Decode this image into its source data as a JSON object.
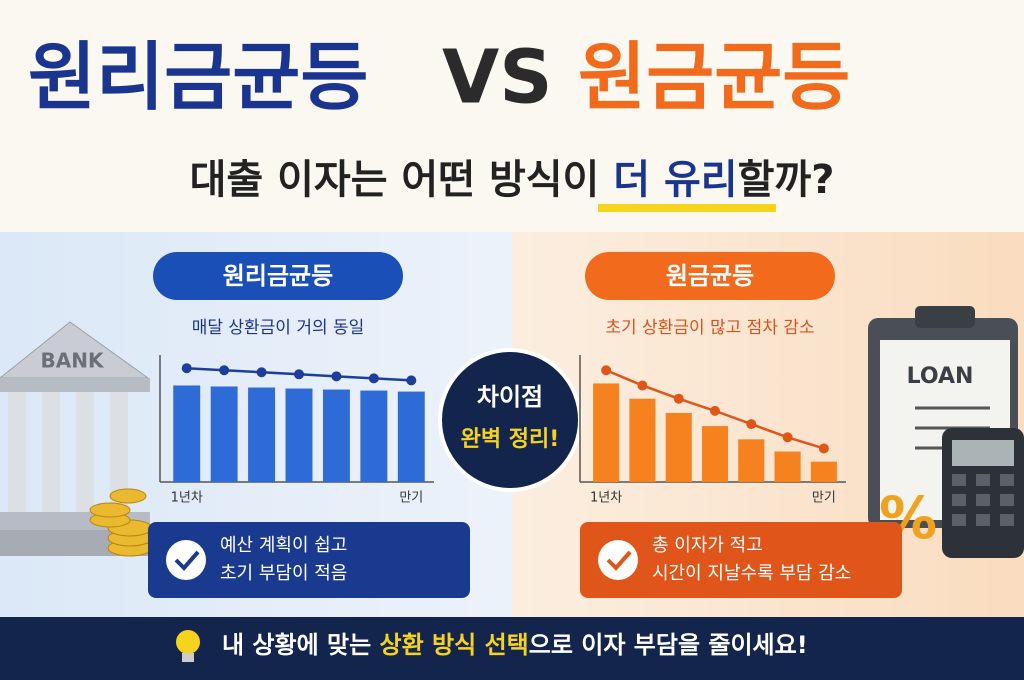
{
  "header": {
    "title_left": "원리금균등",
    "title_vs": "VS",
    "title_right": "원금균등",
    "subtitle_start": "대출 이자는 어떤 방식이 ",
    "subtitle_highlight": "더 유리",
    "subtitle_end": "할까?"
  },
  "panels": [
    {
      "badge": "원리금균등",
      "description": "매달 상환금이 거의 동일",
      "chart": {
        "categories": [
          "1년차",
          null,
          null,
          null,
          null,
          null,
          "만기"
        ],
        "bars": [
          95,
          94,
          93,
          92,
          91,
          90,
          89
        ],
        "line": [
          112,
          110,
          108,
          106,
          104,
          102,
          100
        ],
        "ylim": [
          0,
          125
        ],
        "bar_color": "#2f6bd6",
        "line_color": "#1d3f9a"
      },
      "note": [
        "예산 계획이 쉽고",
        "초기 부담이 적음"
      ]
    },
    {
      "badge": "원금균등",
      "description": "초기 상환금이 많고 점차 감소",
      "chart": {
        "categories": [
          "1년차",
          null,
          null,
          null,
          null,
          null,
          "만기"
        ],
        "bars": [
          97,
          82,
          68,
          55,
          42,
          30,
          20
        ],
        "line": [
          110,
          95,
          82,
          70,
          57,
          44,
          33
        ],
        "ylim": [
          0,
          125
        ],
        "bar_color": "#f5821f",
        "line_color": "#e0561a"
      },
      "note": [
        "총 이자가 적고",
        "시간이 지날수록 부담 감소"
      ]
    }
  ],
  "center": {
    "line1": "차이점",
    "line2": "완벽 정리!"
  },
  "illustrations": {
    "bank": "BANK",
    "loan": "LOAN",
    "percent": "%"
  },
  "footer": {
    "start": "내 상황에 맞는 ",
    "highlight": "상환 방식 선택",
    "end": "으로 이자 부담을 줄이세요!"
  }
}
